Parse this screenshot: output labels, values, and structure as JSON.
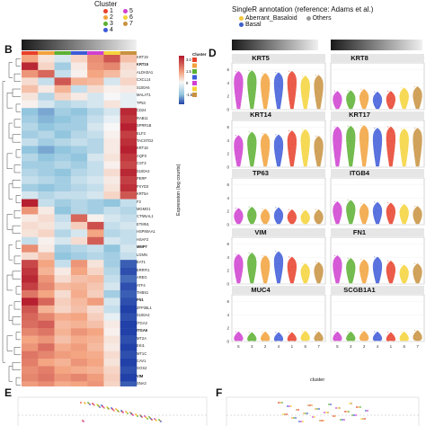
{
  "panels": {
    "b": "B",
    "d": "D",
    "e": "E",
    "f": "F"
  },
  "cluster_legend": {
    "title": "Cluster",
    "items": [
      {
        "label": "1",
        "color": "#e8402a"
      },
      {
        "label": "2",
        "color": "#f2a23c"
      },
      {
        "label": "3",
        "color": "#5cb031"
      },
      {
        "label": "4",
        "color": "#3d5bd8"
      },
      {
        "label": "5",
        "color": "#cf3fd0"
      },
      {
        "label": "6",
        "color": "#f5d33a"
      },
      {
        "label": "7",
        "color": "#c8923f"
      }
    ]
  },
  "singler_legend": {
    "title": "SingleR annotation (reference: Adams et al.)",
    "items": [
      {
        "label": "Aberrant_Basaloid",
        "color": "#f4c63d"
      },
      {
        "label": "Others",
        "color": "#9a9a9a"
      },
      {
        "label": "Basal",
        "color": "#3b5fc9"
      }
    ]
  },
  "heatmap": {
    "scale_title": "Cluster",
    "scale_ticks": [
      "3.0",
      "1.5",
      "0",
      "-1.5"
    ],
    "genes": [
      {
        "name": "KRT19",
        "bold": false
      },
      {
        "name": "KRT15",
        "bold": true
      },
      {
        "name": "ALDH3A1",
        "bold": false
      },
      {
        "name": "CXCL14",
        "bold": false
      },
      {
        "name": "S100A6",
        "bold": false
      },
      {
        "name": "MALAT1",
        "bold": false
      },
      {
        "name": "TP53",
        "bold": false
      },
      {
        "name": "CD24",
        "bold": false
      },
      {
        "name": "RAB11",
        "bold": false
      },
      {
        "name": "SPRR1B",
        "bold": false
      },
      {
        "name": "ELF3",
        "bold": false
      },
      {
        "name": "TACSTD2",
        "bold": false
      },
      {
        "name": "KRT18",
        "bold": false
      },
      {
        "name": "AQP3",
        "bold": false
      },
      {
        "name": "CST3",
        "bold": false
      },
      {
        "name": "S100A2",
        "bold": false
      },
      {
        "name": "PERP",
        "bold": false
      },
      {
        "name": "FXYD3",
        "bold": false
      },
      {
        "name": "KRT5A",
        "bold": false
      },
      {
        "name": "F3",
        "bold": false
      },
      {
        "name": "MGMO1",
        "bold": false
      },
      {
        "name": "CTNNAL1",
        "bold": false
      },
      {
        "name": "ETMN1",
        "bold": false
      },
      {
        "name": "HSP90AA1",
        "bold": false
      },
      {
        "name": "HSAF2",
        "bold": false
      },
      {
        "name": "MMP7",
        "bold": true
      },
      {
        "name": "LGMN",
        "bold": false
      },
      {
        "name": "EAT1",
        "bold": false
      },
      {
        "name": "ERRFI1",
        "bold": false
      },
      {
        "name": "AREG",
        "bold": false
      },
      {
        "name": "ATF4",
        "bold": false
      },
      {
        "name": "THBS1",
        "bold": false
      },
      {
        "name": "FN1",
        "bold": true
      },
      {
        "name": "ZFP36L1",
        "bold": false
      },
      {
        "name": "S100A2",
        "bold": false
      },
      {
        "name": "ITGA3",
        "bold": false
      },
      {
        "name": "ITGA6",
        "bold": true
      },
      {
        "name": "MT2A",
        "bold": false
      },
      {
        "name": "EKI1",
        "bold": false
      },
      {
        "name": "MT1C",
        "bold": false
      },
      {
        "name": "CAV1",
        "bold": false
      },
      {
        "name": "GOS2",
        "bold": false
      },
      {
        "name": "VIM",
        "bold": true
      },
      {
        "name": "SNA3",
        "bold": false
      }
    ]
  },
  "violins": {
    "ylabel": "Expression (log counts)",
    "xlabel": "cluster",
    "order": [
      "5",
      "3",
      "2",
      "4",
      "1",
      "6",
      "7"
    ],
    "titles": [
      "KRT5",
      "KRT8",
      "KRT14",
      "KRT17",
      "TP63",
      "ITGB4",
      "VIM",
      "FN1",
      "MUC4",
      "SCGB1A1"
    ],
    "yticks": [
      "6",
      "4",
      "2",
      "0"
    ]
  },
  "colors": {
    "heat_high": "#d7191c",
    "heat_mid": "#f7f7f7",
    "heat_low": "#1a3fb8"
  }
}
